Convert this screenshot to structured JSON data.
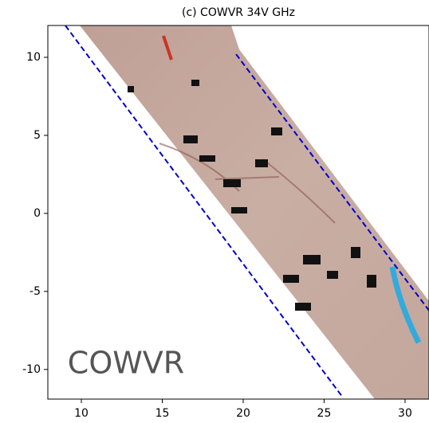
{
  "chart_data": {
    "type": "line",
    "title": "(c) COWVR 34V GHz",
    "annotation": "COWVR",
    "xlim": [
      7.93,
      31.48
    ],
    "ylim": [
      -11.9,
      12.04
    ],
    "xticks": [
      10,
      15,
      20,
      25,
      30
    ],
    "yticks": [
      -10,
      -5,
      0,
      5,
      10
    ],
    "linestyle": "dashed",
    "series": [
      {
        "color": "#0000cc",
        "x": [
          9.01,
          26.16
        ],
        "values": [
          12.04,
          -11.8
        ]
      },
      {
        "color": "#0000cc",
        "x": [
          19.56,
          31.48
        ],
        "values": [
          10.2,
          -6.22
        ]
      }
    ]
  }
}
